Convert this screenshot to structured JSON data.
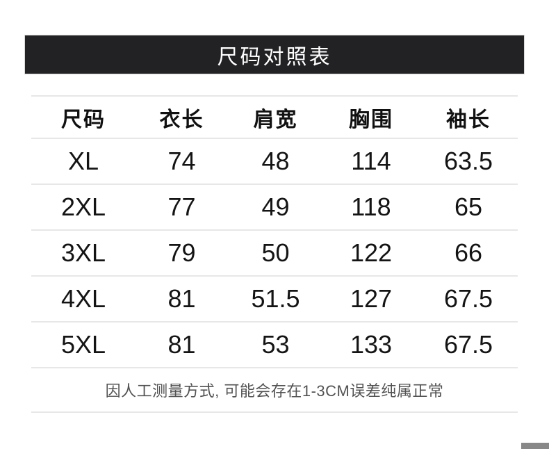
{
  "header": {
    "title": "尺码对照表",
    "bg_color": "#222224",
    "text_color": "#ffffff"
  },
  "chart_data": {
    "type": "table",
    "title": "尺码对照表",
    "columns": [
      "尺码",
      "衣长",
      "肩宽",
      "胸围",
      "袖长"
    ],
    "rows": [
      [
        "XL",
        74,
        48,
        114,
        63.5
      ],
      [
        "2XL",
        77,
        49,
        118,
        65
      ],
      [
        "3XL",
        79,
        50,
        122,
        66
      ],
      [
        "4XL",
        81,
        51.5,
        127,
        67.5
      ],
      [
        "5XL",
        81,
        53,
        133,
        67.5
      ]
    ],
    "note": "因人工测量方式, 可能会存在1-3CM误差纯属正常"
  },
  "colors": {
    "rule": "#e7e7e7",
    "body_text": "#141414",
    "note_text": "#525252",
    "corner_block": "#888888"
  }
}
